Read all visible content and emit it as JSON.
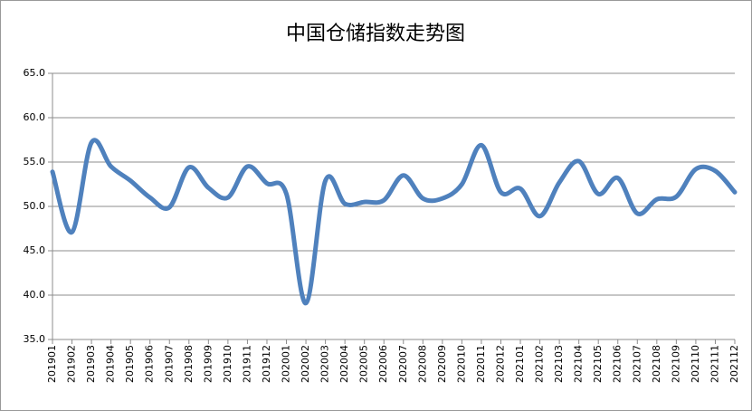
{
  "chart_data": {
    "type": "line",
    "title": "中国仓储指数走势图",
    "categories": [
      "201901",
      "201902",
      "201903",
      "201904",
      "201905",
      "201906",
      "201907",
      "201908",
      "201909",
      "201910",
      "201911",
      "201912",
      "202001",
      "202002",
      "202003",
      "202004",
      "202005",
      "202006",
      "202007",
      "202008",
      "202009",
      "202010",
      "202011",
      "202012",
      "202101",
      "202102",
      "202103",
      "202104",
      "202105",
      "202106",
      "202107",
      "202108",
      "202109",
      "202110",
      "202111",
      "202112"
    ],
    "series": [
      {
        "name": "中国仓储指数",
        "color": "#4f81bd",
        "values": [
          53.9,
          47.1,
          57.2,
          54.5,
          52.9,
          51.0,
          49.9,
          54.4,
          52.1,
          51.0,
          54.5,
          52.6,
          51.4,
          39.1,
          52.9,
          50.3,
          50.5,
          50.7,
          53.5,
          50.9,
          50.9,
          52.5,
          56.9,
          51.6,
          52.0,
          48.9,
          52.7,
          55.1,
          51.4,
          53.2,
          49.2,
          50.8,
          51.1,
          54.2,
          54.0,
          51.6
        ]
      }
    ],
    "ylim": [
      35,
      65
    ],
    "yticks": [
      {
        "value": 35,
        "label": "35.0"
      },
      {
        "value": 40,
        "label": "40.0"
      },
      {
        "value": 45,
        "label": "45.0"
      },
      {
        "value": 50,
        "label": "50.0"
      },
      {
        "value": 55,
        "label": "55.0"
      },
      {
        "value": 60,
        "label": "60.0"
      },
      {
        "value": 65,
        "label": "65.0"
      }
    ],
    "grid": true
  }
}
